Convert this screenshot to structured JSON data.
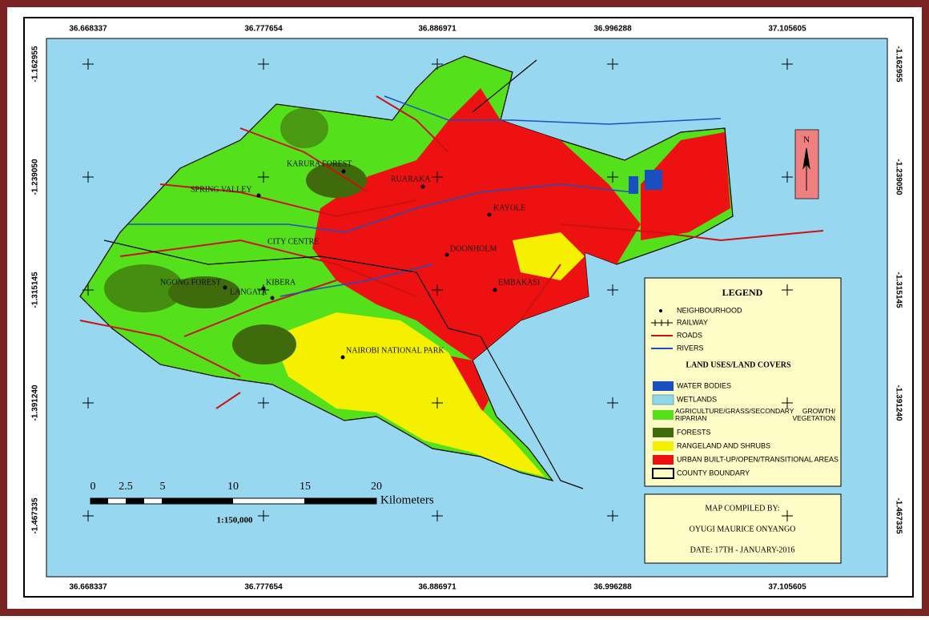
{
  "grid": {
    "x_labels": [
      "36.668337",
      "36.777654",
      "36.886971",
      "36.996288",
      "37.105605"
    ],
    "y_labels": [
      "-1.162955",
      "-1.239050",
      "-1.315145",
      "-1.391240",
      "-1.467335"
    ]
  },
  "places": [
    "KARURA FOREST",
    "SPRING VALLEY",
    "RUARAKA",
    "KAYOLE",
    "CITY CENTRE",
    "DOONHOLM",
    "NGONG FOREST",
    "KIBERA",
    "LANGATA",
    "EMBAKASI",
    "NAIROBI NATIONAL PARK"
  ],
  "legend": {
    "title": "LEGEND",
    "features": [
      "NEIGHBOURHOOD",
      "RAILWAY",
      "ROADS",
      "RIVERS"
    ],
    "section_title": "LAND USES/LAND COVERS",
    "classes": [
      "WATER BODIES",
      "WETLANDS",
      "AGRICULTURE/GRASS/SECONDARY GROWTH/ RIPARIAN VEGETATION",
      "FORESTS",
      "RANGELAND AND SHRUBS",
      "URBAN BUILT-UP/OPEN/TRANSITIONAL AREAS",
      "COUNTY BOUNDARY"
    ]
  },
  "scale": {
    "ticks": [
      "0",
      "2.5",
      "5",
      "10",
      "15",
      "20"
    ],
    "unit": "Kilometers",
    "ratio": "1:150,000"
  },
  "north": "N",
  "credits": {
    "heading": "MAP COMPILED BY:",
    "author": "OYUGI MAURICE ONYANGO",
    "date": "DATE:  17TH - JANUARY-2016"
  }
}
